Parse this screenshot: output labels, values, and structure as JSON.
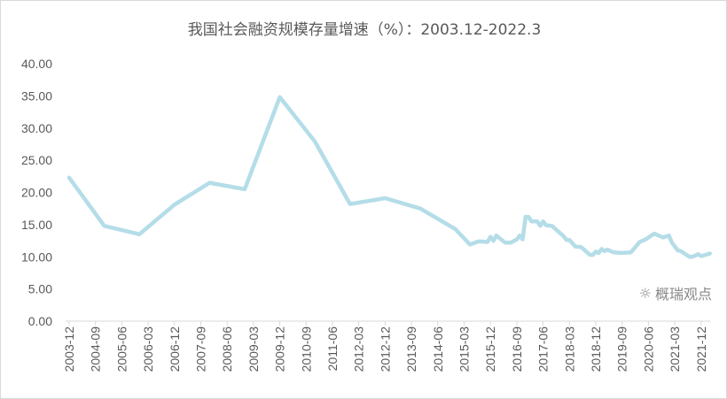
{
  "chart_data": {
    "type": "line",
    "title": "我国社会融资规模存量增速（%）：2003.12-2022.3",
    "xlabel": "",
    "ylabel": "",
    "ylim": [
      0,
      40
    ],
    "yticks": [
      "0.00",
      "5.00",
      "10.00",
      "15.00",
      "20.00",
      "25.00",
      "30.00",
      "35.00",
      "40.00"
    ],
    "xticks": [
      "2003-12",
      "2004-09",
      "2005-06",
      "2006-03",
      "2006-12",
      "2007-09",
      "2008-06",
      "2009-03",
      "2009-12",
      "2010-09",
      "2011-06",
      "2012-03",
      "2012-12",
      "2013-09",
      "2014-06",
      "2015-03",
      "2015-12",
      "2016-09",
      "2017-06",
      "2018-03",
      "2018-12",
      "2019-09",
      "2020-06",
      "2021-03",
      "2021-12"
    ],
    "grid": false,
    "line_color": "#b4dde8",
    "series": [
      {
        "x": [
          "2003-12",
          "2004-12",
          "2005-12",
          "2006-12",
          "2007-12",
          "2008-12",
          "2009-12",
          "2010-12",
          "2011-12",
          "2012-12",
          "2013-12",
          "2014-12",
          "2015-05",
          "2015-08",
          "2015-11",
          "2015-12",
          "2016-01",
          "2016-02",
          "2016-05",
          "2016-07",
          "2016-09",
          "2016-10",
          "2016-11",
          "2016-12",
          "2017-01",
          "2017-02",
          "2017-04",
          "2017-05",
          "2017-06",
          "2017-07",
          "2017-09",
          "2017-12",
          "2018-01",
          "2018-02",
          "2018-03",
          "2018-05",
          "2018-07",
          "2018-10",
          "2018-11",
          "2018-12",
          "2019-01",
          "2019-02",
          "2019-03",
          "2019-04",
          "2019-06",
          "2019-09",
          "2019-12",
          "2020-03",
          "2020-05",
          "2020-07",
          "2020-08",
          "2020-11",
          "2021-01",
          "2021-02",
          "2021-04",
          "2021-05",
          "2021-08",
          "2021-09",
          "2021-11",
          "2021-12",
          "2022-03"
        ],
        "values": [
          22.3,
          14.8,
          13.5,
          18.1,
          21.5,
          20.5,
          34.8,
          27.9,
          18.2,
          19.1,
          17.5,
          14.3,
          11.9,
          12.4,
          12.3,
          13.1,
          12.5,
          13.3,
          12.2,
          12.2,
          12.7,
          13.3,
          12.7,
          16.2,
          16.2,
          15.5,
          15.5,
          14.8,
          15.5,
          14.9,
          14.8,
          13.6,
          13.2,
          12.6,
          12.6,
          11.6,
          11.5,
          10.3,
          10.3,
          10.8,
          10.6,
          11.2,
          10.9,
          11.1,
          10.7,
          10.6,
          10.7,
          12.3,
          12.7,
          13.3,
          13.6,
          13.0,
          13.3,
          12.2,
          11.0,
          10.9,
          10.0,
          10.0,
          10.4,
          10.1,
          10.5
        ]
      }
    ]
  },
  "watermark": {
    "text": "概瑞观点",
    "icon": "wechat-icon"
  }
}
